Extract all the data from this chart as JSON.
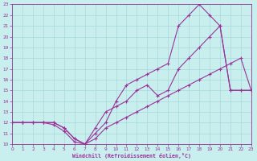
{
  "xlabel": "Windchill (Refroidissement éolien,°C)",
  "xlim": [
    0,
    23
  ],
  "ylim": [
    10,
    23
  ],
  "xticks": [
    0,
    1,
    2,
    3,
    4,
    5,
    6,
    7,
    8,
    9,
    10,
    11,
    12,
    13,
    14,
    15,
    16,
    17,
    18,
    19,
    20,
    21,
    22,
    23
  ],
  "yticks": [
    10,
    11,
    12,
    13,
    14,
    15,
    16,
    17,
    18,
    19,
    20,
    21,
    22,
    23
  ],
  "background_color": "#c8eeee",
  "grid_color": "#a8d8d8",
  "line_color": "#993399",
  "line1_x": [
    0,
    1,
    2,
    3,
    4,
    5,
    6,
    7,
    8,
    9,
    10,
    11,
    12,
    13,
    14,
    15,
    16,
    17,
    18,
    19,
    20,
    21,
    22,
    23
  ],
  "line1_y": [
    12,
    12,
    12,
    12,
    12,
    11.5,
    10.5,
    10,
    10.5,
    11.5,
    12,
    12.5,
    13,
    13.5,
    14,
    14.5,
    15,
    15.5,
    16,
    16.5,
    17,
    17.5,
    18,
    15
  ],
  "line2_x": [
    0,
    1,
    2,
    3,
    4,
    5,
    6,
    7,
    8,
    9,
    10,
    11,
    12,
    13,
    14,
    15,
    16,
    17,
    18,
    19,
    20,
    21,
    22,
    23
  ],
  "line2_y": [
    12,
    12,
    12,
    12,
    12,
    11.5,
    10.5,
    10,
    11,
    12,
    14,
    15.5,
    16,
    16.5,
    17,
    17.5,
    21,
    22,
    23,
    22,
    21,
    15,
    15,
    15
  ],
  "line3_x": [
    0,
    1,
    2,
    3,
    4,
    5,
    6,
    7,
    8,
    9,
    10,
    11,
    12,
    13,
    14,
    15,
    16,
    17,
    18,
    19,
    20,
    21,
    22,
    23
  ],
  "line3_y": [
    12,
    12,
    12,
    12,
    11.8,
    11.2,
    10.2,
    10,
    11.5,
    13,
    13.5,
    14,
    15,
    15.5,
    14.5,
    15,
    17,
    18,
    19,
    20,
    21,
    15,
    15,
    15
  ],
  "marker_size": 2.5,
  "line_width": 0.8
}
